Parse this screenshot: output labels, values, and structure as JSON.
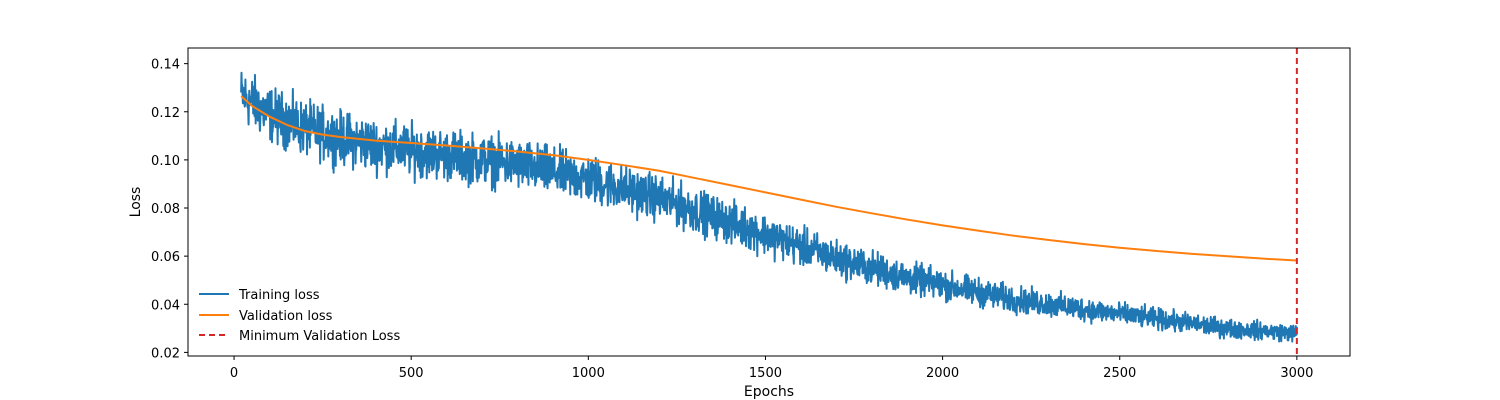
{
  "chart_data": {
    "type": "line",
    "title": "",
    "xlabel": "Epochs",
    "ylabel": "Loss",
    "xlim": [
      -130,
      3150
    ],
    "ylim": [
      0.0185,
      0.1465
    ],
    "xticks": [
      0,
      500,
      1000,
      1500,
      2000,
      2500,
      3000
    ],
    "yticks": [
      0.02,
      0.04,
      0.06,
      0.08,
      0.1,
      0.12,
      0.14
    ],
    "ytick_labels": [
      "0.02",
      "0.04",
      "0.06",
      "0.08",
      "0.10",
      "0.12",
      "0.14"
    ],
    "grid": false,
    "legend_position": "lower-left",
    "series": [
      {
        "name": "Training loss",
        "color": "#1f77b4",
        "style": "solid",
        "x_start": 20,
        "x_end": 3000,
        "trend": {
          "x": [
            20,
            100,
            200,
            300,
            400,
            500,
            600,
            700,
            800,
            900,
            1000,
            1100,
            1200,
            1300,
            1400,
            1500,
            1600,
            1700,
            1800,
            1900,
            2000,
            2100,
            2200,
            2300,
            2400,
            2500,
            2600,
            2700,
            2800,
            2900,
            3000
          ],
          "y": [
            0.127,
            0.119,
            0.113,
            0.109,
            0.106,
            0.104,
            0.102,
            0.1,
            0.098,
            0.095,
            0.092,
            0.088,
            0.084,
            0.079,
            0.074,
            0.069,
            0.064,
            0.059,
            0.055,
            0.051,
            0.048,
            0.045,
            0.042,
            0.04,
            0.038,
            0.036,
            0.034,
            0.032,
            0.03,
            0.029,
            0.028
          ]
        },
        "noise_amplitude": {
          "x": [
            20,
            1000,
            1500,
            2000,
            2500,
            3000
          ],
          "y": [
            0.0055,
            0.0048,
            0.004,
            0.003,
            0.0022,
            0.0017
          ]
        }
      },
      {
        "name": "Validation loss",
        "color": "#ff7f0e",
        "style": "solid",
        "x": [
          20,
          50,
          100,
          150,
          200,
          250,
          300,
          400,
          500,
          600,
          700,
          800,
          900,
          1000,
          1100,
          1200,
          1300,
          1400,
          1500,
          1600,
          1700,
          1800,
          1900,
          2000,
          2100,
          2200,
          2300,
          2400,
          2500,
          2600,
          2700,
          2800,
          2900,
          3000
        ],
        "y": [
          0.1265,
          0.1225,
          0.118,
          0.1145,
          0.112,
          0.1105,
          0.1095,
          0.108,
          0.107,
          0.106,
          0.1048,
          0.1035,
          0.102,
          0.1,
          0.0978,
          0.0955,
          0.0925,
          0.0895,
          0.0865,
          0.0835,
          0.0805,
          0.0778,
          0.0752,
          0.0728,
          0.0706,
          0.0685,
          0.0667,
          0.065,
          0.0635,
          0.0622,
          0.061,
          0.06,
          0.059,
          0.0582
        ]
      }
    ],
    "vertical_line": {
      "name": "Minimum Validation Loss",
      "x": 3000,
      "color": "#d62728",
      "style": "dashed"
    }
  }
}
